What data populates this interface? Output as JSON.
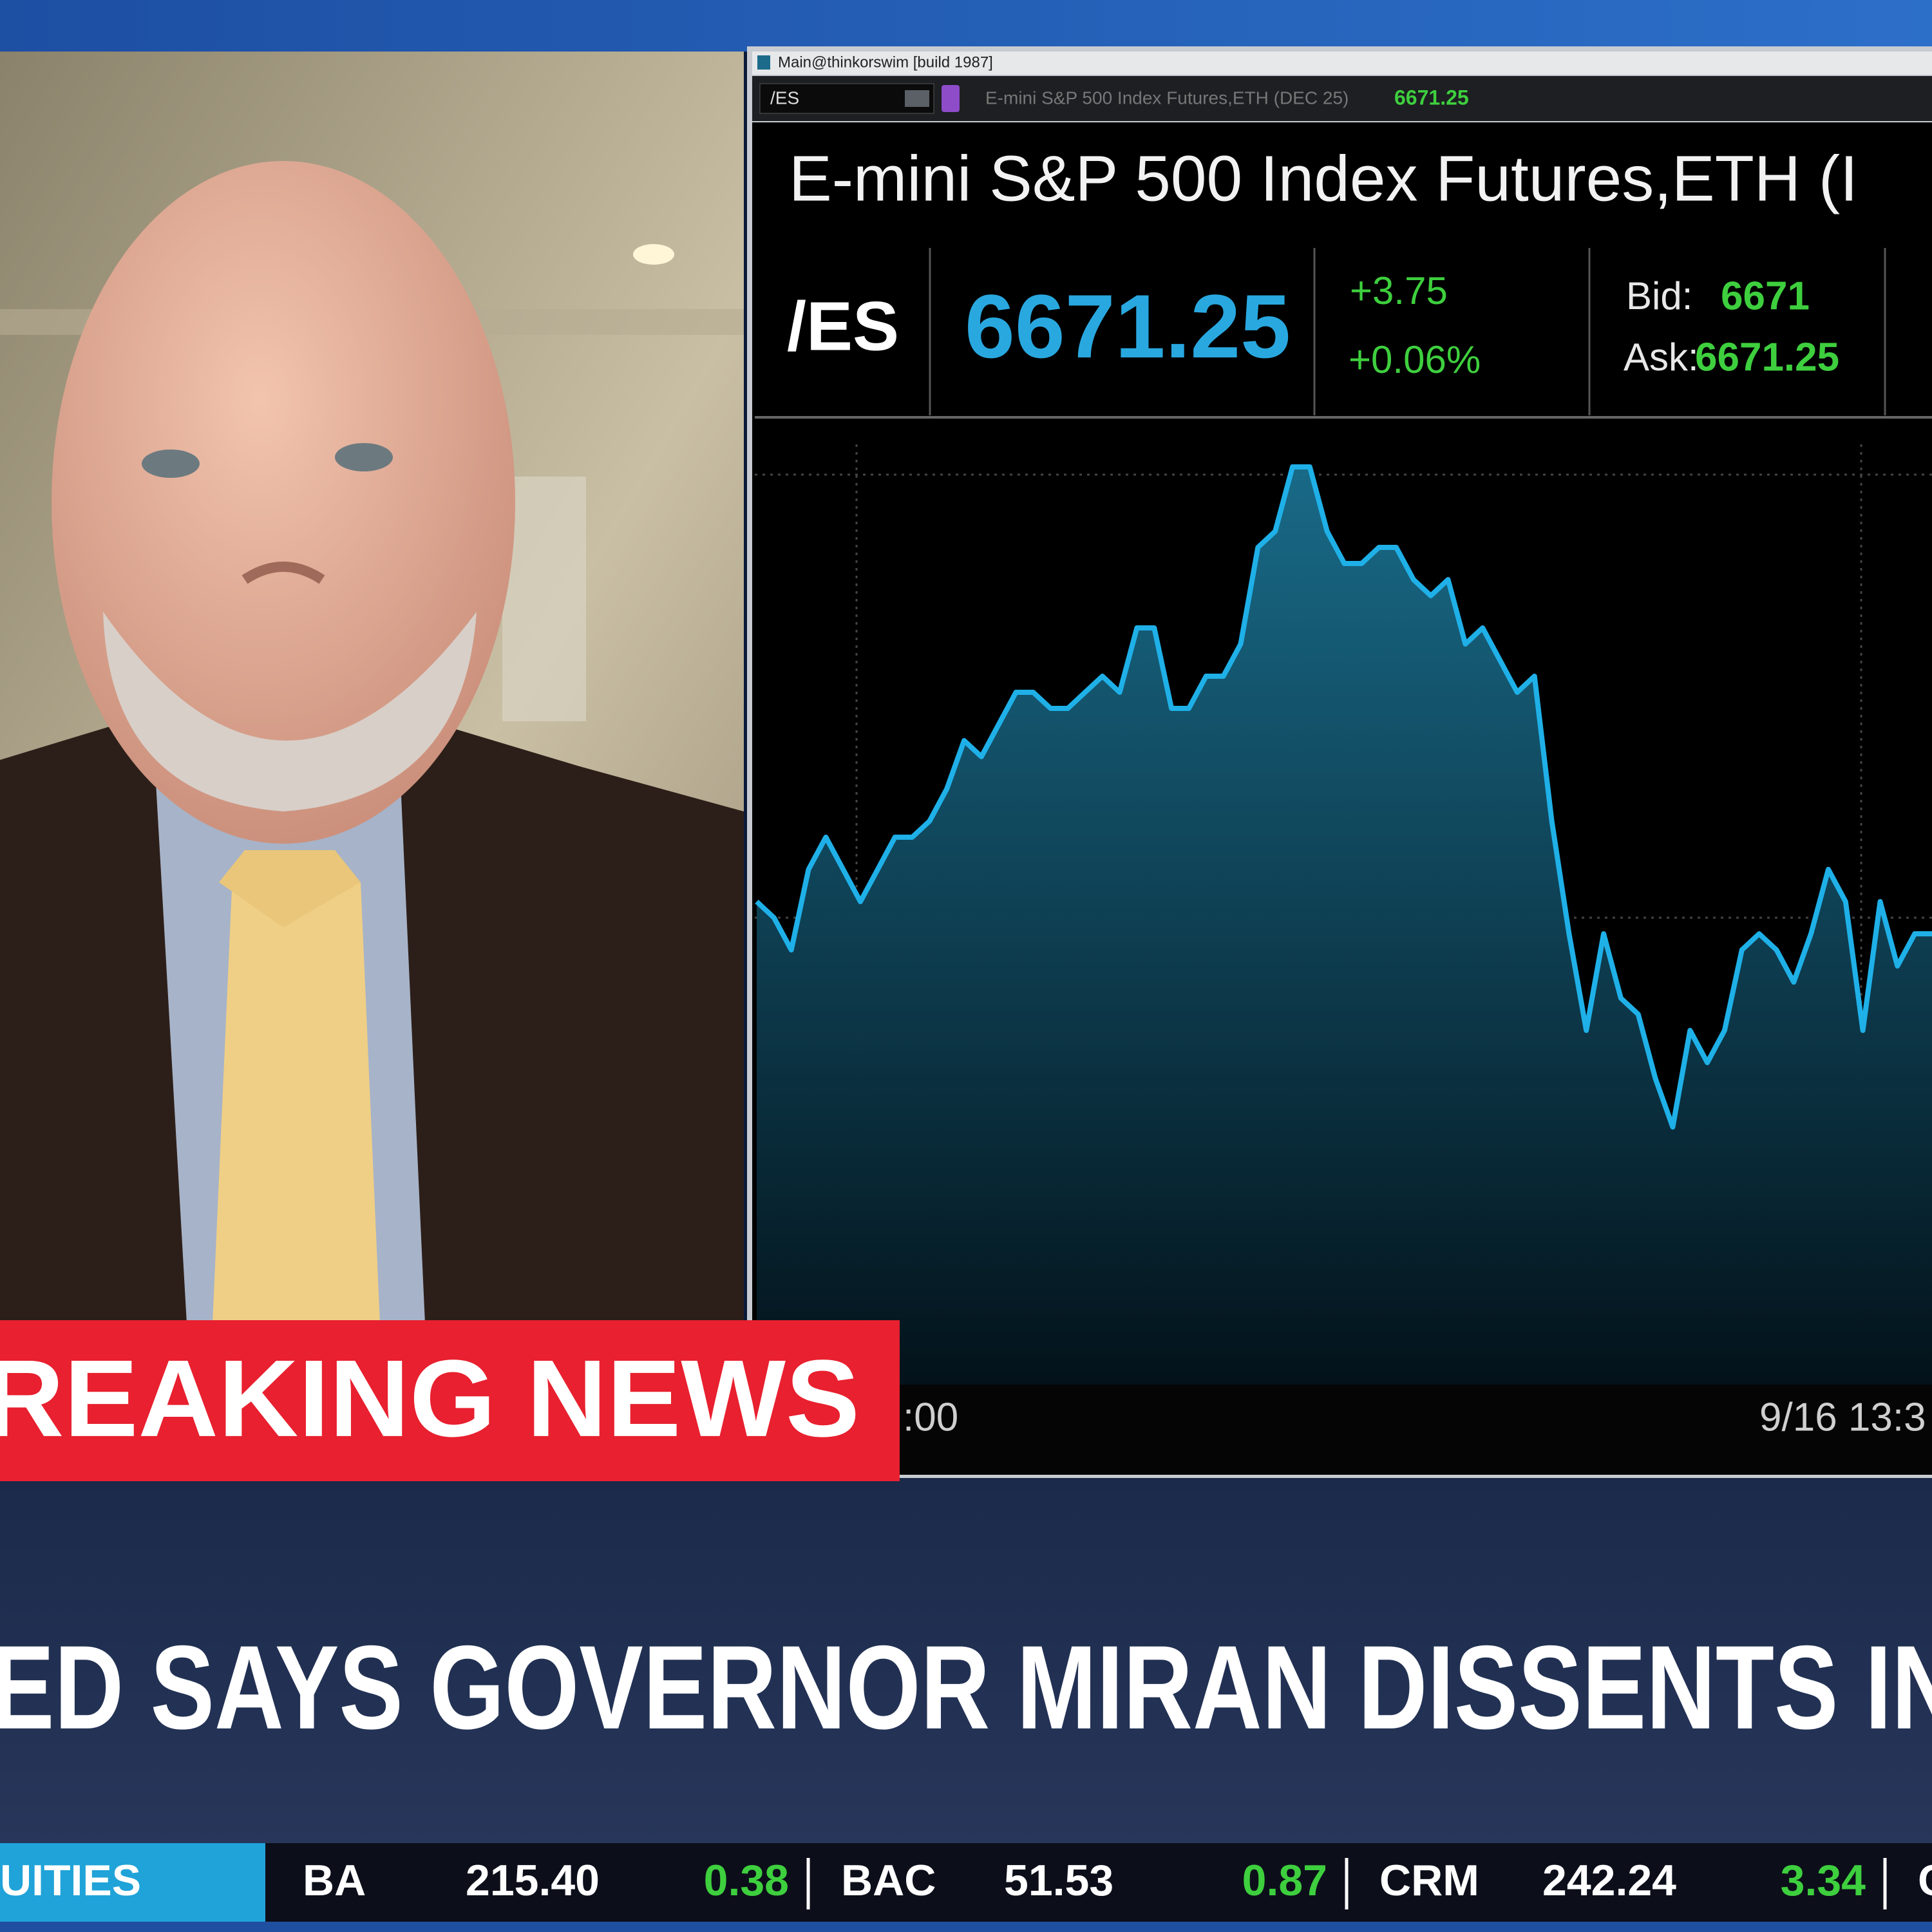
{
  "window": {
    "title": "Main@thinkorswim [build 1987]"
  },
  "toolbar": {
    "symbol": "/ES",
    "description": "E-mini S&P 500 Index Futures,ETH (DEC 25)",
    "last": "6671.25"
  },
  "quote": {
    "title": "E-mini S&P 500 Index Futures,ETH (I",
    "symbol": "/ES",
    "last": "6671.25",
    "change": "+3.75",
    "change_pct": "+0.06%",
    "bid_label": "Bid:",
    "bid": "6671",
    "ask_label": "Ask:",
    "ask": "6671.25"
  },
  "chart_data": {
    "type": "area",
    "color": "#1fb0e8",
    "ylim": [
      6640,
      6700
    ],
    "xtick_labels": [
      ":00",
      "9/16 13:3"
    ],
    "values": [
      6670,
      6669,
      6667,
      6672,
      6674,
      6672,
      6670,
      6672,
      6674,
      6674,
      6675,
      6677,
      6680,
      6679,
      6681,
      6683,
      6683,
      6682,
      6682,
      6683,
      6684,
      6683,
      6687,
      6687,
      6682,
      6682,
      6684,
      6684,
      6686,
      6692,
      6693,
      6697,
      6697,
      6693,
      6691,
      6691,
      6692,
      6692,
      6690,
      6689,
      6690,
      6686,
      6687,
      6685,
      6683,
      6684,
      6675,
      6668,
      6662,
      6668,
      6664,
      6663,
      6659,
      6656,
      6662,
      6660,
      6662,
      6667,
      6668,
      6667,
      6665,
      6668,
      6672,
      6670,
      6662,
      6670,
      6666,
      6668,
      6668
    ]
  },
  "banner": {
    "text": "REAKING NEWS"
  },
  "headline": {
    "text": "ED SAYS GOVERNOR MIRAN DISSENTS IN"
  },
  "ticker": {
    "label": "UITIES",
    "items": [
      {
        "symbol": "BA",
        "price": "215.40",
        "change": "0.38"
      },
      {
        "symbol": "BAC",
        "price": "51.53",
        "change": "0.87"
      },
      {
        "symbol": "CRM",
        "price": "242.24",
        "change": "3.34"
      },
      {
        "symbol": "C"
      }
    ]
  }
}
